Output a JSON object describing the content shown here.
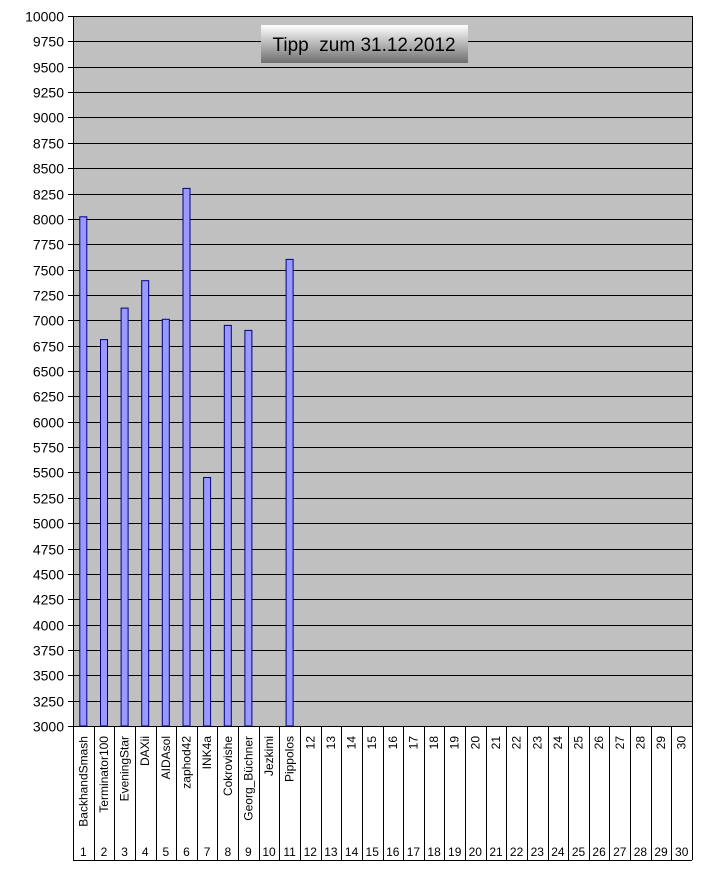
{
  "chart_data": {
    "type": "bar",
    "title": "Tipp  zum 31.12.2012",
    "xlabel": "",
    "ylabel": "",
    "ylim": [
      3000,
      10000
    ],
    "ytick_step": 250,
    "grid": true,
    "legend": "none",
    "colors": {
      "plot_background": "#c0c0c0",
      "bar_fill": "#9999ff",
      "bar_stroke": "#000080",
      "gridline": "#000000",
      "title_box_top": "#ffffff",
      "title_box_bottom": "#6e6e6e"
    },
    "categories": [
      {
        "index": "1",
        "name": "BackhandSmash"
      },
      {
        "index": "2",
        "name": "Terminator100"
      },
      {
        "index": "3",
        "name": "EveningStar"
      },
      {
        "index": "4",
        "name": "DAXii"
      },
      {
        "index": "5",
        "name": "AIDAsol"
      },
      {
        "index": "6",
        "name": "zaphod42"
      },
      {
        "index": "7",
        "name": "INK4a"
      },
      {
        "index": "8",
        "name": "Cokrovishe"
      },
      {
        "index": "9",
        "name": "Georg_Büchner"
      },
      {
        "index": "10",
        "name": "Jezkimi"
      },
      {
        "index": "11",
        "name": "Pippolos"
      },
      {
        "index": "12",
        "name": "12"
      },
      {
        "index": "13",
        "name": "13"
      },
      {
        "index": "14",
        "name": "14"
      },
      {
        "index": "15",
        "name": "15"
      },
      {
        "index": "16",
        "name": "16"
      },
      {
        "index": "17",
        "name": "17"
      },
      {
        "index": "18",
        "name": "18"
      },
      {
        "index": "19",
        "name": "19"
      },
      {
        "index": "20",
        "name": "20"
      },
      {
        "index": "21",
        "name": "21"
      },
      {
        "index": "22",
        "name": "22"
      },
      {
        "index": "23",
        "name": "23"
      },
      {
        "index": "24",
        "name": "24"
      },
      {
        "index": "25",
        "name": "25"
      },
      {
        "index": "26",
        "name": "26"
      },
      {
        "index": "27",
        "name": "27"
      },
      {
        "index": "28",
        "name": "28"
      },
      {
        "index": "29",
        "name": "29"
      },
      {
        "index": "30",
        "name": "30"
      }
    ],
    "values": [
      8020,
      6810,
      7120,
      7390,
      7010,
      8300,
      5450,
      6950,
      6900,
      null,
      7600,
      null,
      null,
      null,
      null,
      null,
      null,
      null,
      null,
      null,
      null,
      null,
      null,
      null,
      null,
      null,
      null,
      null,
      null,
      null
    ]
  }
}
